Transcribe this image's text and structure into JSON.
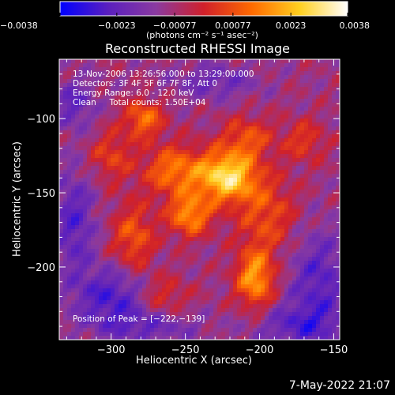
{
  "chart_data": {
    "type": "heatmap",
    "title": "Reconstructed RHESSI Image",
    "xlabel": "Heliocentric X (arcsec)",
    "ylabel": "Heliocentric Y (arcsec)",
    "xlim": [
      -335,
      -146
    ],
    "ylim": [
      -249,
      -60
    ],
    "xticks": [
      -300,
      -250,
      -200,
      -150
    ],
    "yticks": [
      -100,
      -150,
      -200
    ],
    "xtick_labels": [
      "−300",
      "−250",
      "−200",
      "−150"
    ],
    "ytick_labels": [
      "−100",
      "−150",
      "−200"
    ],
    "colorbar": {
      "range": [
        -0.0038,
        0.0038
      ],
      "ticks": [
        -0.0038,
        -0.0023,
        -0.00077,
        0.00077,
        0.0023,
        0.0038
      ],
      "tick_labels": [
        "−0.0038",
        "−0.0023",
        "−0.00077",
        "0.00077",
        "0.0023",
        "0.0038"
      ],
      "unit_label": "(photons cm⁻² s⁻¹ asec⁻²)",
      "colors": [
        "#0000ff",
        "#5a1fbf",
        "#8a3aa0",
        "#d0202a",
        "#ff6a00",
        "#ffd020",
        "#ffffff"
      ]
    },
    "annotations": [
      "13-Nov-2006 13:26:56.000 to 13:29:00.000",
      "Detectors: 3F 4F 5F 6F 7F 8F, Att 0",
      "Energy Range: 6.0 - 12.0 keV",
      "Clean     Total counts: 1.50E+04"
    ],
    "peak_label": "Position of Peak = [−222,−139]",
    "peak": [
      -222,
      -139
    ],
    "sources": [
      {
        "x": -222,
        "y": -139,
        "amp": 0.0038,
        "sx": 14,
        "sy": 12
      },
      {
        "x": -247,
        "y": -165,
        "amp": 0.0026,
        "sx": 10,
        "sy": 10
      },
      {
        "x": -258,
        "y": -135,
        "amp": 0.0022,
        "sx": 14,
        "sy": 12
      },
      {
        "x": -278,
        "y": -100,
        "amp": 0.0022,
        "sx": 9,
        "sy": 9
      },
      {
        "x": -203,
        "y": -208,
        "amp": 0.0028,
        "sx": 9,
        "sy": 14
      },
      {
        "x": -208,
        "y": -113,
        "amp": 0.0016,
        "sx": 12,
        "sy": 10
      },
      {
        "x": -195,
        "y": -165,
        "amp": 0.0016,
        "sx": 14,
        "sy": 18
      },
      {
        "x": -285,
        "y": -180,
        "amp": 0.0018,
        "sx": 10,
        "sy": 16
      },
      {
        "x": -265,
        "y": -220,
        "amp": 0.0012,
        "sx": 12,
        "sy": 10
      },
      {
        "x": -300,
        "y": -125,
        "amp": 0.0014,
        "sx": 10,
        "sy": 12
      },
      {
        "x": -170,
        "y": -115,
        "amp": 0.0013,
        "sx": 10,
        "sy": 10
      },
      {
        "x": -300,
        "y": -220,
        "amp": -0.0018,
        "sx": 18,
        "sy": 14
      },
      {
        "x": -325,
        "y": -170,
        "amp": -0.0016,
        "sx": 10,
        "sy": 25
      },
      {
        "x": -325,
        "y": -90,
        "amp": -0.0014,
        "sx": 10,
        "sy": 12
      },
      {
        "x": -160,
        "y": -210,
        "amp": -0.0016,
        "sx": 14,
        "sy": 25
      },
      {
        "x": -175,
        "y": -240,
        "amp": -0.0014,
        "sx": 20,
        "sy": 10
      },
      {
        "x": -230,
        "y": -75,
        "amp": -0.0012,
        "sx": 20,
        "sy": 8
      },
      {
        "x": -275,
        "y": -240,
        "amp": -0.0012,
        "sx": 25,
        "sy": 8
      }
    ]
  },
  "footer": {
    "timestamp": "7-May-2022 21:07"
  }
}
